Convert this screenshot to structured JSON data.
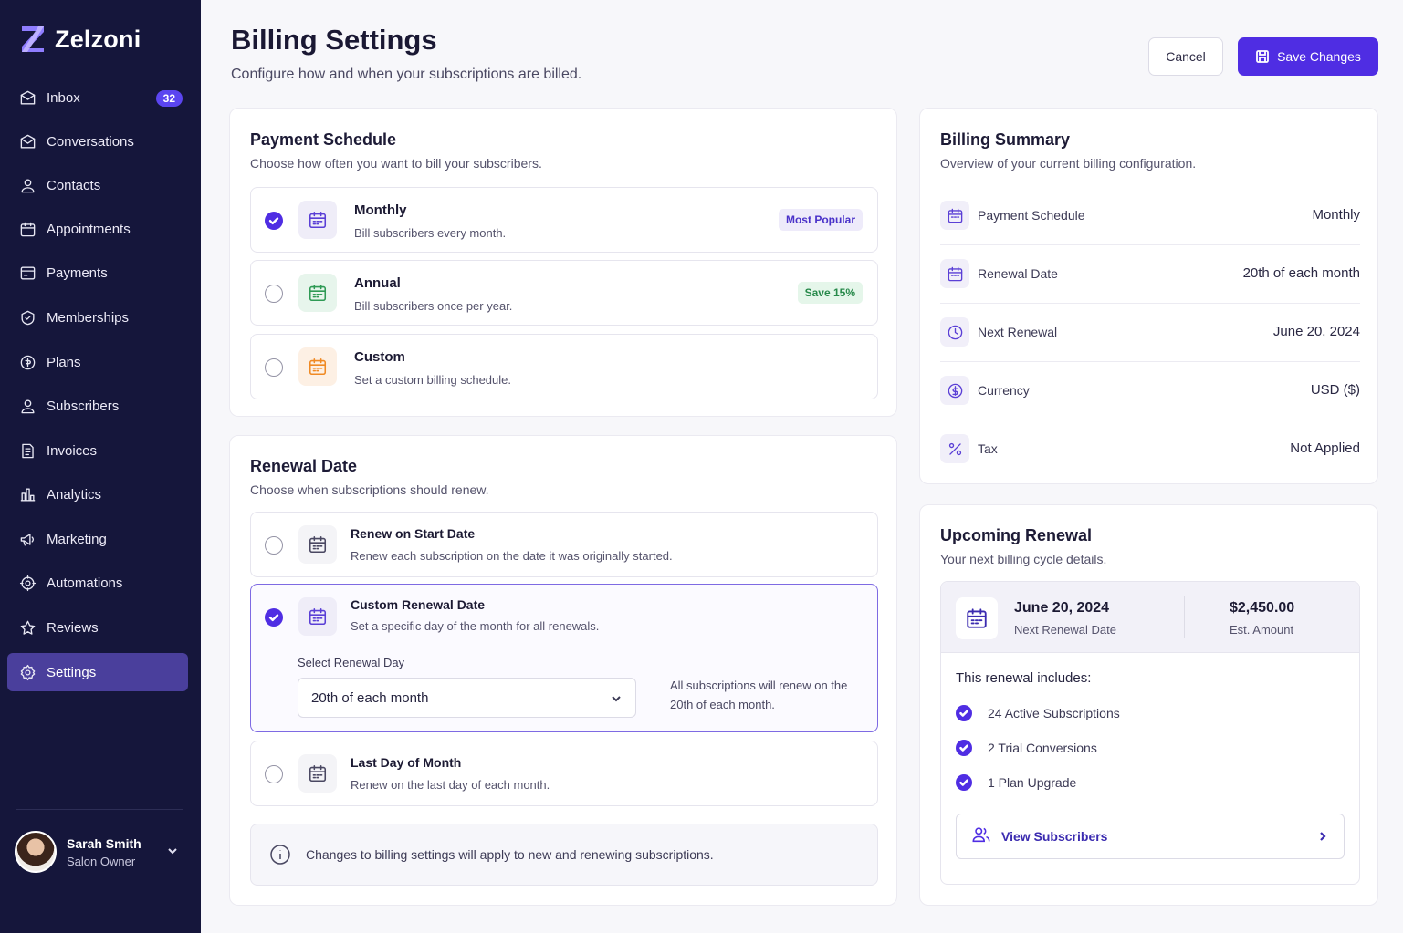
{
  "app": {
    "name": "Zelzoni"
  },
  "sidebar": {
    "items": [
      {
        "label": "Inbox",
        "icon": "inbox-icon",
        "badge": "32"
      },
      {
        "label": "Conversations",
        "icon": "conversations-icon"
      },
      {
        "label": "Contacts",
        "icon": "contacts-icon"
      },
      {
        "label": "Appointments",
        "icon": "calendar-icon"
      },
      {
        "label": "Payments",
        "icon": "payments-icon"
      },
      {
        "label": "Memberships",
        "icon": "memberships-icon"
      },
      {
        "label": "Plans",
        "icon": "plans-icon"
      },
      {
        "label": "Subscribers",
        "icon": "subscribers-icon"
      },
      {
        "label": "Invoices",
        "icon": "invoices-icon"
      },
      {
        "label": "Analytics",
        "icon": "analytics-icon"
      },
      {
        "label": "Marketing",
        "icon": "marketing-icon"
      },
      {
        "label": "Automations",
        "icon": "automations-icon"
      },
      {
        "label": "Reviews",
        "icon": "star-icon"
      },
      {
        "label": "Settings",
        "icon": "gear-icon",
        "active": true
      }
    ],
    "user": {
      "name": "Sarah Smith",
      "role": "Salon Owner"
    }
  },
  "header": {
    "title": "Billing Settings",
    "subtitle": "Configure how and when your subscriptions are billed.",
    "cancel_label": "Cancel",
    "save_label": "Save Changes"
  },
  "payment_schedule": {
    "title": "Payment Schedule",
    "subtitle": "Choose how often you want to bill your subscribers.",
    "options": [
      {
        "title": "Monthly",
        "desc": "Bill subscribers every month.",
        "badge": "Most Popular",
        "selected": true
      },
      {
        "title": "Annual",
        "desc": "Bill subscribers once per year.",
        "badge": "Save 15%",
        "selected": false
      },
      {
        "title": "Custom",
        "desc": "Set a custom billing schedule.",
        "selected": false
      }
    ]
  },
  "renewal_date": {
    "title": "Renewal Date",
    "subtitle": "Choose when subscriptions should renew.",
    "options": [
      {
        "title": "Renew on Start Date",
        "desc": "Renew each subscription on the date it was originally started.",
        "selected": false
      },
      {
        "title": "Custom Renewal Date",
        "desc": "Set a specific day of the month for all renewals.",
        "selected": true
      },
      {
        "title": "Last Day of Month",
        "desc": "Renew on the last day of each month.",
        "selected": false
      }
    ],
    "select_label": "Select Renewal Day",
    "select_value": "20th of each month",
    "select_note": "All subscriptions will renew on the 20th of each month.",
    "info": "Changes to billing settings will apply to new and renewing subscriptions."
  },
  "billing_summary": {
    "title": "Billing Summary",
    "subtitle": "Overview of your current billing configuration.",
    "rows": [
      {
        "label": "Payment Schedule",
        "value": "Monthly",
        "icon": "calendar-icon"
      },
      {
        "label": "Renewal Date",
        "value": "20th of each month",
        "icon": "calendar-icon"
      },
      {
        "label": "Next Renewal",
        "value": "June 20, 2024",
        "icon": "clock-icon"
      },
      {
        "label": "Currency",
        "value": "USD ($)",
        "icon": "currency-icon"
      },
      {
        "label": "Tax",
        "value": "Not Applied",
        "icon": "percent-icon"
      }
    ]
  },
  "upcoming_renewal": {
    "title": "Upcoming Renewal",
    "subtitle": "Your next billing cycle details.",
    "date": "June 20, 2024",
    "date_label": "Next Renewal Date",
    "amount": "$2,450.00",
    "amount_label": "Est. Amount",
    "includes_title": "This renewal includes:",
    "includes": [
      "24 Active Subscriptions",
      "2 Trial Conversions",
      "1 Plan Upgrade"
    ],
    "view_label": "View Subscribers"
  },
  "colors": {
    "accent": "#4f2de3",
    "sidebar": "#15163b",
    "active_nav": "#4a3f9c",
    "green": "#2f9a55",
    "orange": "#f08a24"
  }
}
